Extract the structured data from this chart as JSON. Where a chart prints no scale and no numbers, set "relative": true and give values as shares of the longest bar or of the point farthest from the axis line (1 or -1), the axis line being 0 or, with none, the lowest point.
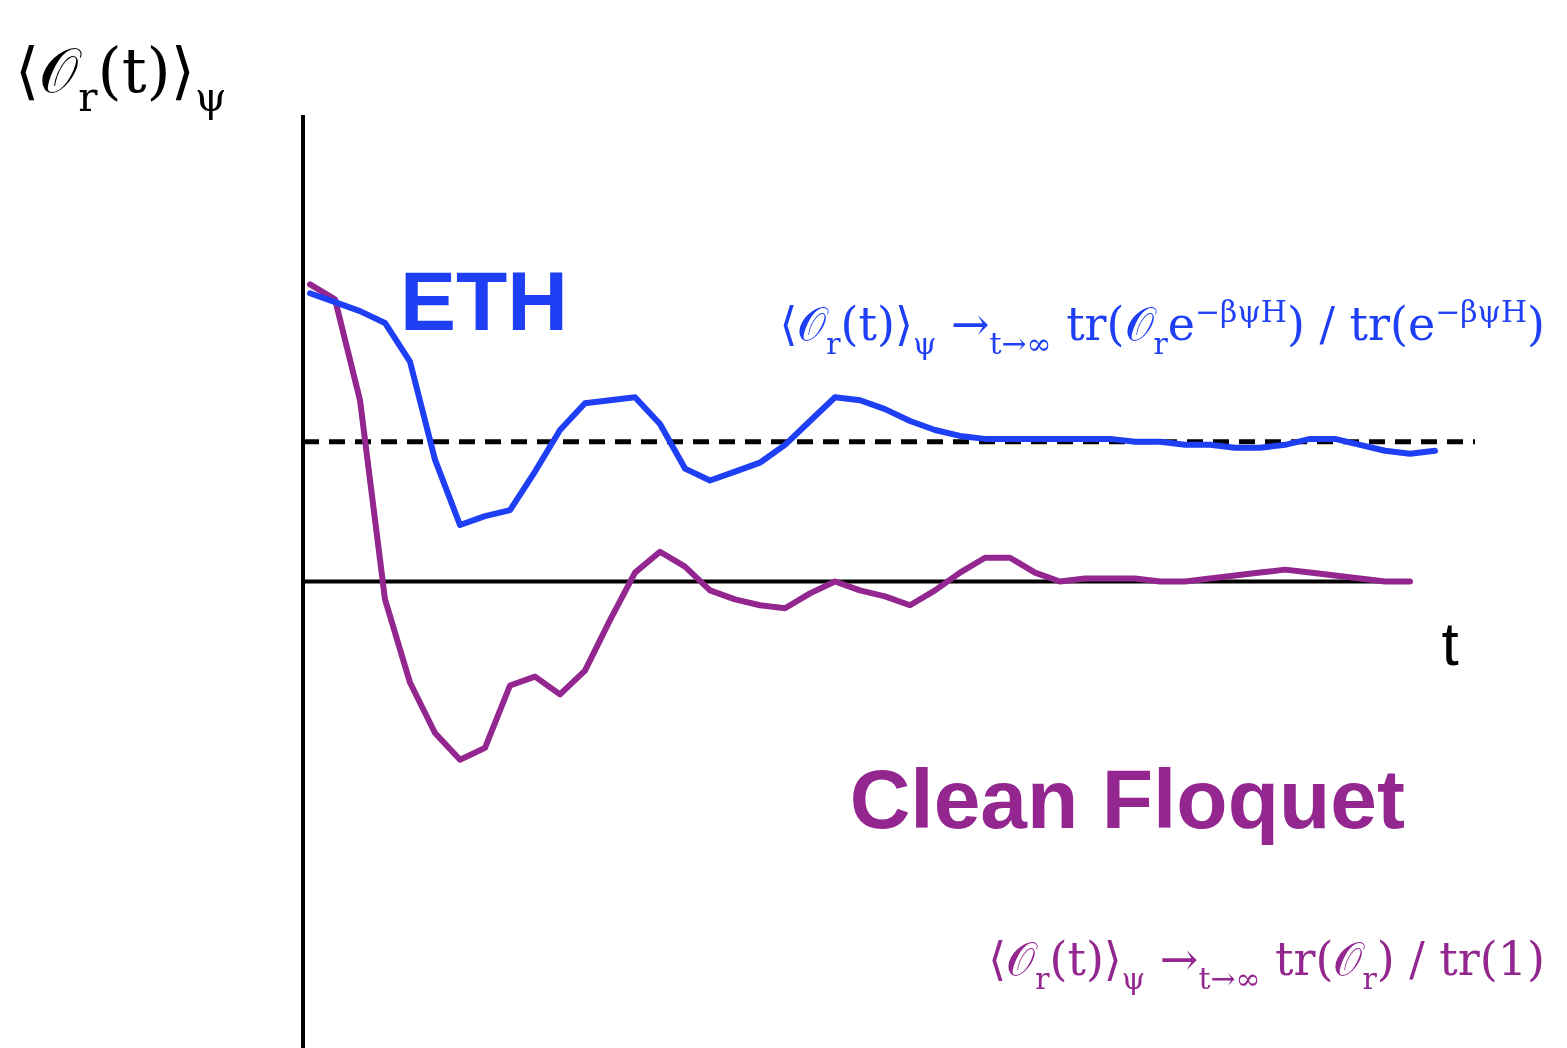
{
  "chart_data": {
    "type": "line",
    "relative": true,
    "xlabel": "t",
    "ylabel": "⟨𝒪$_{r}$(t)⟩$_{ψ}$",
    "legend": false,
    "marker": "none",
    "categories": [
      null,
      null,
      null,
      null,
      null,
      null,
      null,
      null,
      null,
      null,
      null,
      null,
      null,
      null,
      null,
      null,
      null,
      null,
      null,
      null,
      null,
      null,
      null,
      null,
      null,
      null,
      null,
      null,
      null,
      null,
      null,
      null,
      null,
      null,
      null,
      null,
      null,
      null,
      null,
      null,
      null,
      null,
      null,
      null,
      null,
      null
    ],
    "series": [
      {
        "name": "ETH",
        "color": "#1f3ff5",
        "values": [
          0.97,
          0.94,
          0.91,
          0.87,
          0.74,
          0.41,
          0.19,
          0.22,
          0.24,
          0.37,
          0.51,
          0.6,
          0.61,
          0.62,
          0.53,
          0.38,
          0.34,
          0.37,
          0.4,
          0.46,
          0.54,
          0.62,
          0.61,
          0.58,
          0.54,
          0.51,
          0.49,
          0.48,
          0.48,
          0.48,
          0.48,
          0.48,
          0.48,
          0.47,
          0.47,
          0.46,
          0.46,
          0.45,
          0.45,
          0.46,
          0.48,
          0.48,
          0.46,
          0.44,
          0.43,
          0.44
        ]
      },
      {
        "name": "Clean Floquet",
        "color": "#93278f",
        "values": [
          1.0,
          0.95,
          0.61,
          -0.06,
          -0.34,
          -0.51,
          -0.6,
          -0.56,
          -0.35,
          -0.32,
          -0.38,
          -0.3,
          -0.13,
          0.03,
          0.1,
          0.05,
          -0.03,
          -0.06,
          -0.08,
          -0.09,
          -0.04,
          0.0,
          -0.03,
          -0.05,
          -0.08,
          -0.03,
          0.03,
          0.08,
          0.08,
          0.03,
          0.0,
          0.01,
          0.01,
          0.01,
          0.0,
          0.0,
          0.01,
          0.02,
          0.03,
          0.04,
          0.03,
          0.02,
          0.01,
          0.0,
          0.0,
          null
        ]
      }
    ],
    "ref_lines": [
      {
        "axis": "y",
        "value": 0.47,
        "color": "#000000",
        "line_style": "dashed"
      }
    ],
    "annotations": [
      "⟨𝒪$_{r}$(t)⟩$_{ψ}$ →$_{t→∞}$ tr(𝒪$_{r}$e$^{−βψH}$) / tr(e$^{−βψH}$)",
      "⟨𝒪$_{r}$(t)⟩$_{ψ}$ →$_{t→∞}$ tr(𝒪$_{r}$) / tr(1)"
    ]
  }
}
